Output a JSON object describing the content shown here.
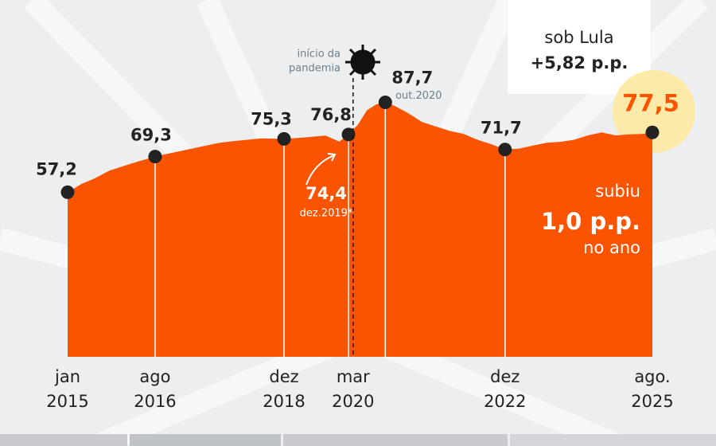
{
  "chart_data": {
    "type": "area",
    "color": "#fb5400",
    "xlim": [
      "2015-01",
      "2025-08"
    ],
    "ylim": [
      0,
      120
    ],
    "x": [
      "2015-01",
      "2015-04",
      "2015-07",
      "2015-10",
      "2016-01",
      "2016-04",
      "2016-08",
      "2016-10",
      "2017-01",
      "2017-04",
      "2017-07",
      "2017-10",
      "2018-01",
      "2018-04",
      "2018-07",
      "2018-12",
      "2019-03",
      "2019-06",
      "2019-09",
      "2019-12",
      "2020-02",
      "2020-04",
      "2020-06",
      "2020-08",
      "2020-10",
      "2020-12",
      "2021-03",
      "2021-06",
      "2021-09",
      "2021-12",
      "2022-03",
      "2022-06",
      "2022-09",
      "2022-12",
      "2023-03",
      "2023-06",
      "2023-09",
      "2023-12",
      "2024-03",
      "2024-06",
      "2024-09",
      "2024-12",
      "2025-03",
      "2025-06",
      "2025-08"
    ],
    "values": [
      57.2,
      60,
      62,
      64.5,
      66,
      67.5,
      69.3,
      70,
      71,
      72,
      73,
      74,
      74.5,
      75,
      75.5,
      75.3,
      75.6,
      76,
      76.4,
      74.4,
      76.8,
      80,
      85,
      87,
      87.7,
      86.5,
      84,
      81,
      79.5,
      78,
      77,
      75,
      73.5,
      71.7,
      72,
      73,
      74,
      74.3,
      75,
      76.5,
      77.5,
      76.5,
      76.8,
      77,
      77.5
    ],
    "points": {
      "x": [
        "2015-01",
        "2016-08",
        "2018-12",
        "2020-02",
        "2020-10",
        "2022-12",
        "2025-08"
      ],
      "values": [
        57.2,
        69.3,
        75.3,
        76.8,
        87.7,
        71.7,
        77.5
      ],
      "value_labels": [
        "57,2",
        "69,3",
        "75,3",
        "76,8",
        "87,7",
        "71,7",
        "77,5"
      ]
    },
    "peak_note": "out.2020",
    "note_point": {
      "value": 74.4,
      "value_label": "74,4",
      "label": "dez.2019*"
    },
    "pandemic": {
      "x": "2020-03",
      "label": [
        "início da",
        "pandemia"
      ]
    },
    "xticks": [
      {
        "value": "2015-01",
        "label": [
          "jan",
          "2015"
        ]
      },
      {
        "value": "2016-08",
        "label": [
          "ago",
          "2016"
        ]
      },
      {
        "value": "2018-12",
        "label": [
          "dez",
          "2018"
        ]
      },
      {
        "value": "2020-03",
        "label": [
          "mar",
          "2020"
        ]
      },
      {
        "value": "2022-12",
        "label": [
          "dez",
          "2022"
        ]
      },
      {
        "value": "2025-08",
        "label": [
          "ago.",
          "2025"
        ]
      }
    ],
    "box": {
      "title": "sob Lula",
      "value": "+5,82 p.p."
    },
    "summary": [
      "subiu",
      "1,0 p.p.",
      "no ano"
    ]
  }
}
